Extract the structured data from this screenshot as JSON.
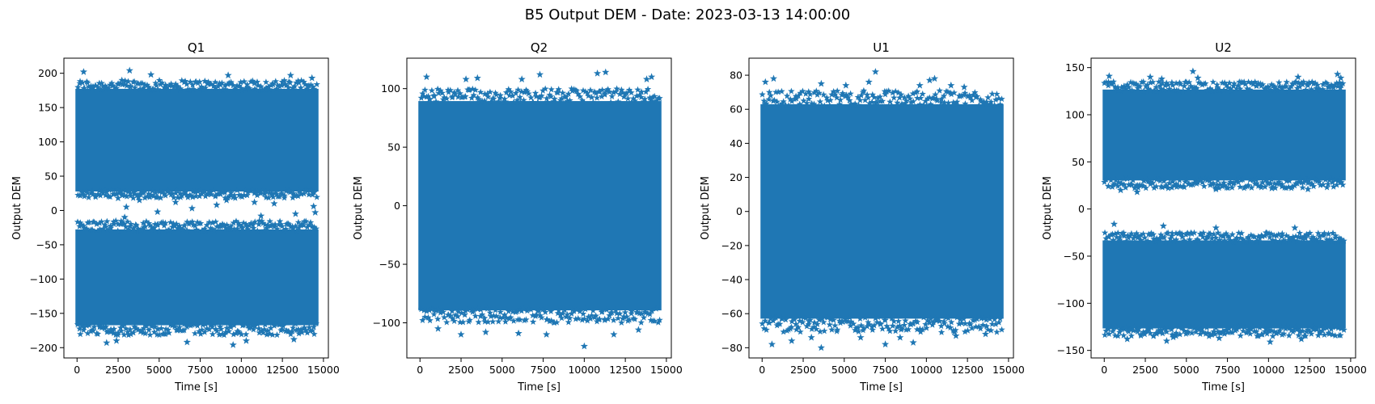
{
  "figure": {
    "title": "B5 Output DEM - Date: 2023-03-13 14:00:00"
  },
  "colors": {
    "series": "#1f77b4",
    "axes": "#000000",
    "background": "#ffffff"
  },
  "chart_data": [
    {
      "type": "scatter",
      "marker": "star",
      "title": "Q1",
      "xlabel": "Time [s]",
      "ylabel": "Output DEM",
      "grid": false,
      "xlim": [
        -800,
        15300
      ],
      "ylim": [
        -215,
        222
      ],
      "xticks": [
        0,
        2500,
        5000,
        7500,
        10000,
        12500,
        15000
      ],
      "yticks": [
        -200,
        -150,
        -100,
        -50,
        0,
        50,
        100,
        150,
        200
      ],
      "data_x_range": [
        0,
        14600
      ],
      "bands": [
        {
          "y_range": [
            30,
            175
          ],
          "edge_range": [
            18,
            190
          ]
        },
        {
          "y_range": [
            -165,
            -30
          ],
          "edge_range": [
            -182,
            -15
          ]
        }
      ],
      "outliers": [
        [
          400,
          202
        ],
        [
          3200,
          204
        ],
        [
          4500,
          198
        ],
        [
          9200,
          197
        ],
        [
          13000,
          197
        ],
        [
          14300,
          193
        ],
        [
          2500,
          18
        ],
        [
          2900,
          -10
        ],
        [
          3000,
          5
        ],
        [
          3800,
          15
        ],
        [
          4900,
          -2
        ],
        [
          6000,
          12
        ],
        [
          7000,
          3
        ],
        [
          8500,
          8
        ],
        [
          9100,
          15
        ],
        [
          10800,
          12
        ],
        [
          11200,
          -8
        ],
        [
          12000,
          10
        ],
        [
          13300,
          -5
        ],
        [
          14400,
          6
        ],
        [
          14500,
          -3
        ],
        [
          1800,
          -193
        ],
        [
          2400,
          -190
        ],
        [
          6700,
          -192
        ],
        [
          9500,
          -196
        ],
        [
          10300,
          -190
        ],
        [
          13200,
          -188
        ]
      ]
    },
    {
      "type": "scatter",
      "marker": "star",
      "title": "Q2",
      "xlabel": "Time [s]",
      "ylabel": "Output DEM",
      "grid": false,
      "xlim": [
        -800,
        15300
      ],
      "ylim": [
        -130,
        126
      ],
      "xticks": [
        0,
        2500,
        5000,
        7500,
        10000,
        12500,
        15000
      ],
      "yticks": [
        -100,
        -50,
        0,
        50,
        100
      ],
      "data_x_range": [
        0,
        14600
      ],
      "bands": [
        {
          "y_range": [
            -88,
            88
          ],
          "edge_range": [
            -100,
            100
          ]
        }
      ],
      "outliers": [
        [
          400,
          110
        ],
        [
          2800,
          108
        ],
        [
          3500,
          109
        ],
        [
          6200,
          108
        ],
        [
          7300,
          112
        ],
        [
          10800,
          113
        ],
        [
          11300,
          114
        ],
        [
          13800,
          108
        ],
        [
          14100,
          110
        ],
        [
          1100,
          -105
        ],
        [
          2500,
          -110
        ],
        [
          4000,
          -108
        ],
        [
          6000,
          -109
        ],
        [
          7700,
          -110
        ],
        [
          10000,
          -120
        ],
        [
          11800,
          -110
        ],
        [
          13300,
          -106
        ]
      ]
    },
    {
      "type": "scatter",
      "marker": "star",
      "title": "U1",
      "xlabel": "Time [s]",
      "ylabel": "Output DEM",
      "grid": false,
      "xlim": [
        -800,
        15300
      ],
      "ylim": [
        -86,
        90
      ],
      "xticks": [
        0,
        2500,
        5000,
        7500,
        10000,
        12500,
        15000
      ],
      "yticks": [
        -80,
        -60,
        -40,
        -20,
        0,
        20,
        40,
        60,
        80
      ],
      "data_x_range": [
        0,
        14600
      ],
      "bands": [
        {
          "y_range": [
            -62,
            62
          ],
          "edge_range": [
            -71,
            71
          ]
        }
      ],
      "outliers": [
        [
          200,
          76
        ],
        [
          700,
          78
        ],
        [
          3600,
          75
        ],
        [
          5100,
          74
        ],
        [
          6500,
          76
        ],
        [
          6900,
          82
        ],
        [
          9600,
          74
        ],
        [
          10200,
          77
        ],
        [
          10500,
          78
        ],
        [
          11500,
          74
        ],
        [
          12300,
          73
        ],
        [
          600,
          -78
        ],
        [
          1800,
          -76
        ],
        [
          3000,
          -74
        ],
        [
          3600,
          -80
        ],
        [
          6000,
          -74
        ],
        [
          7500,
          -78
        ],
        [
          8400,
          -74
        ],
        [
          9200,
          -77
        ],
        [
          11800,
          -73
        ],
        [
          13600,
          -72
        ]
      ]
    },
    {
      "type": "scatter",
      "marker": "star",
      "title": "U2",
      "xlabel": "Time [s]",
      "ylabel": "Output DEM",
      "grid": false,
      "xlim": [
        -800,
        15300
      ],
      "ylim": [
        -158,
        160
      ],
      "xticks": [
        0,
        2500,
        5000,
        7500,
        10000,
        12500,
        15000
      ],
      "yticks": [
        -150,
        -100,
        -50,
        0,
        50,
        100,
        150
      ],
      "data_x_range": [
        0,
        14600
      ],
      "bands": [
        {
          "y_range": [
            32,
            125
          ],
          "edge_range": [
            22,
            135
          ]
        },
        {
          "y_range": [
            -125,
            -35
          ],
          "edge_range": [
            -135,
            -25
          ]
        }
      ],
      "outliers": [
        [
          300,
          141
        ],
        [
          2800,
          140
        ],
        [
          3500,
          138
        ],
        [
          5400,
          146
        ],
        [
          5700,
          139
        ],
        [
          11800,
          140
        ],
        [
          14200,
          143
        ],
        [
          14400,
          139
        ],
        [
          1000,
          20
        ],
        [
          2000,
          18
        ],
        [
          6800,
          21
        ],
        [
          10200,
          22
        ],
        [
          12400,
          21
        ],
        [
          600,
          -16
        ],
        [
          3600,
          -18
        ],
        [
          6800,
          -20
        ],
        [
          11600,
          -20
        ],
        [
          1400,
          -138
        ],
        [
          3800,
          -140
        ],
        [
          4200,
          -136
        ],
        [
          7000,
          -137
        ],
        [
          10100,
          -141
        ],
        [
          12000,
          -138
        ]
      ]
    }
  ]
}
